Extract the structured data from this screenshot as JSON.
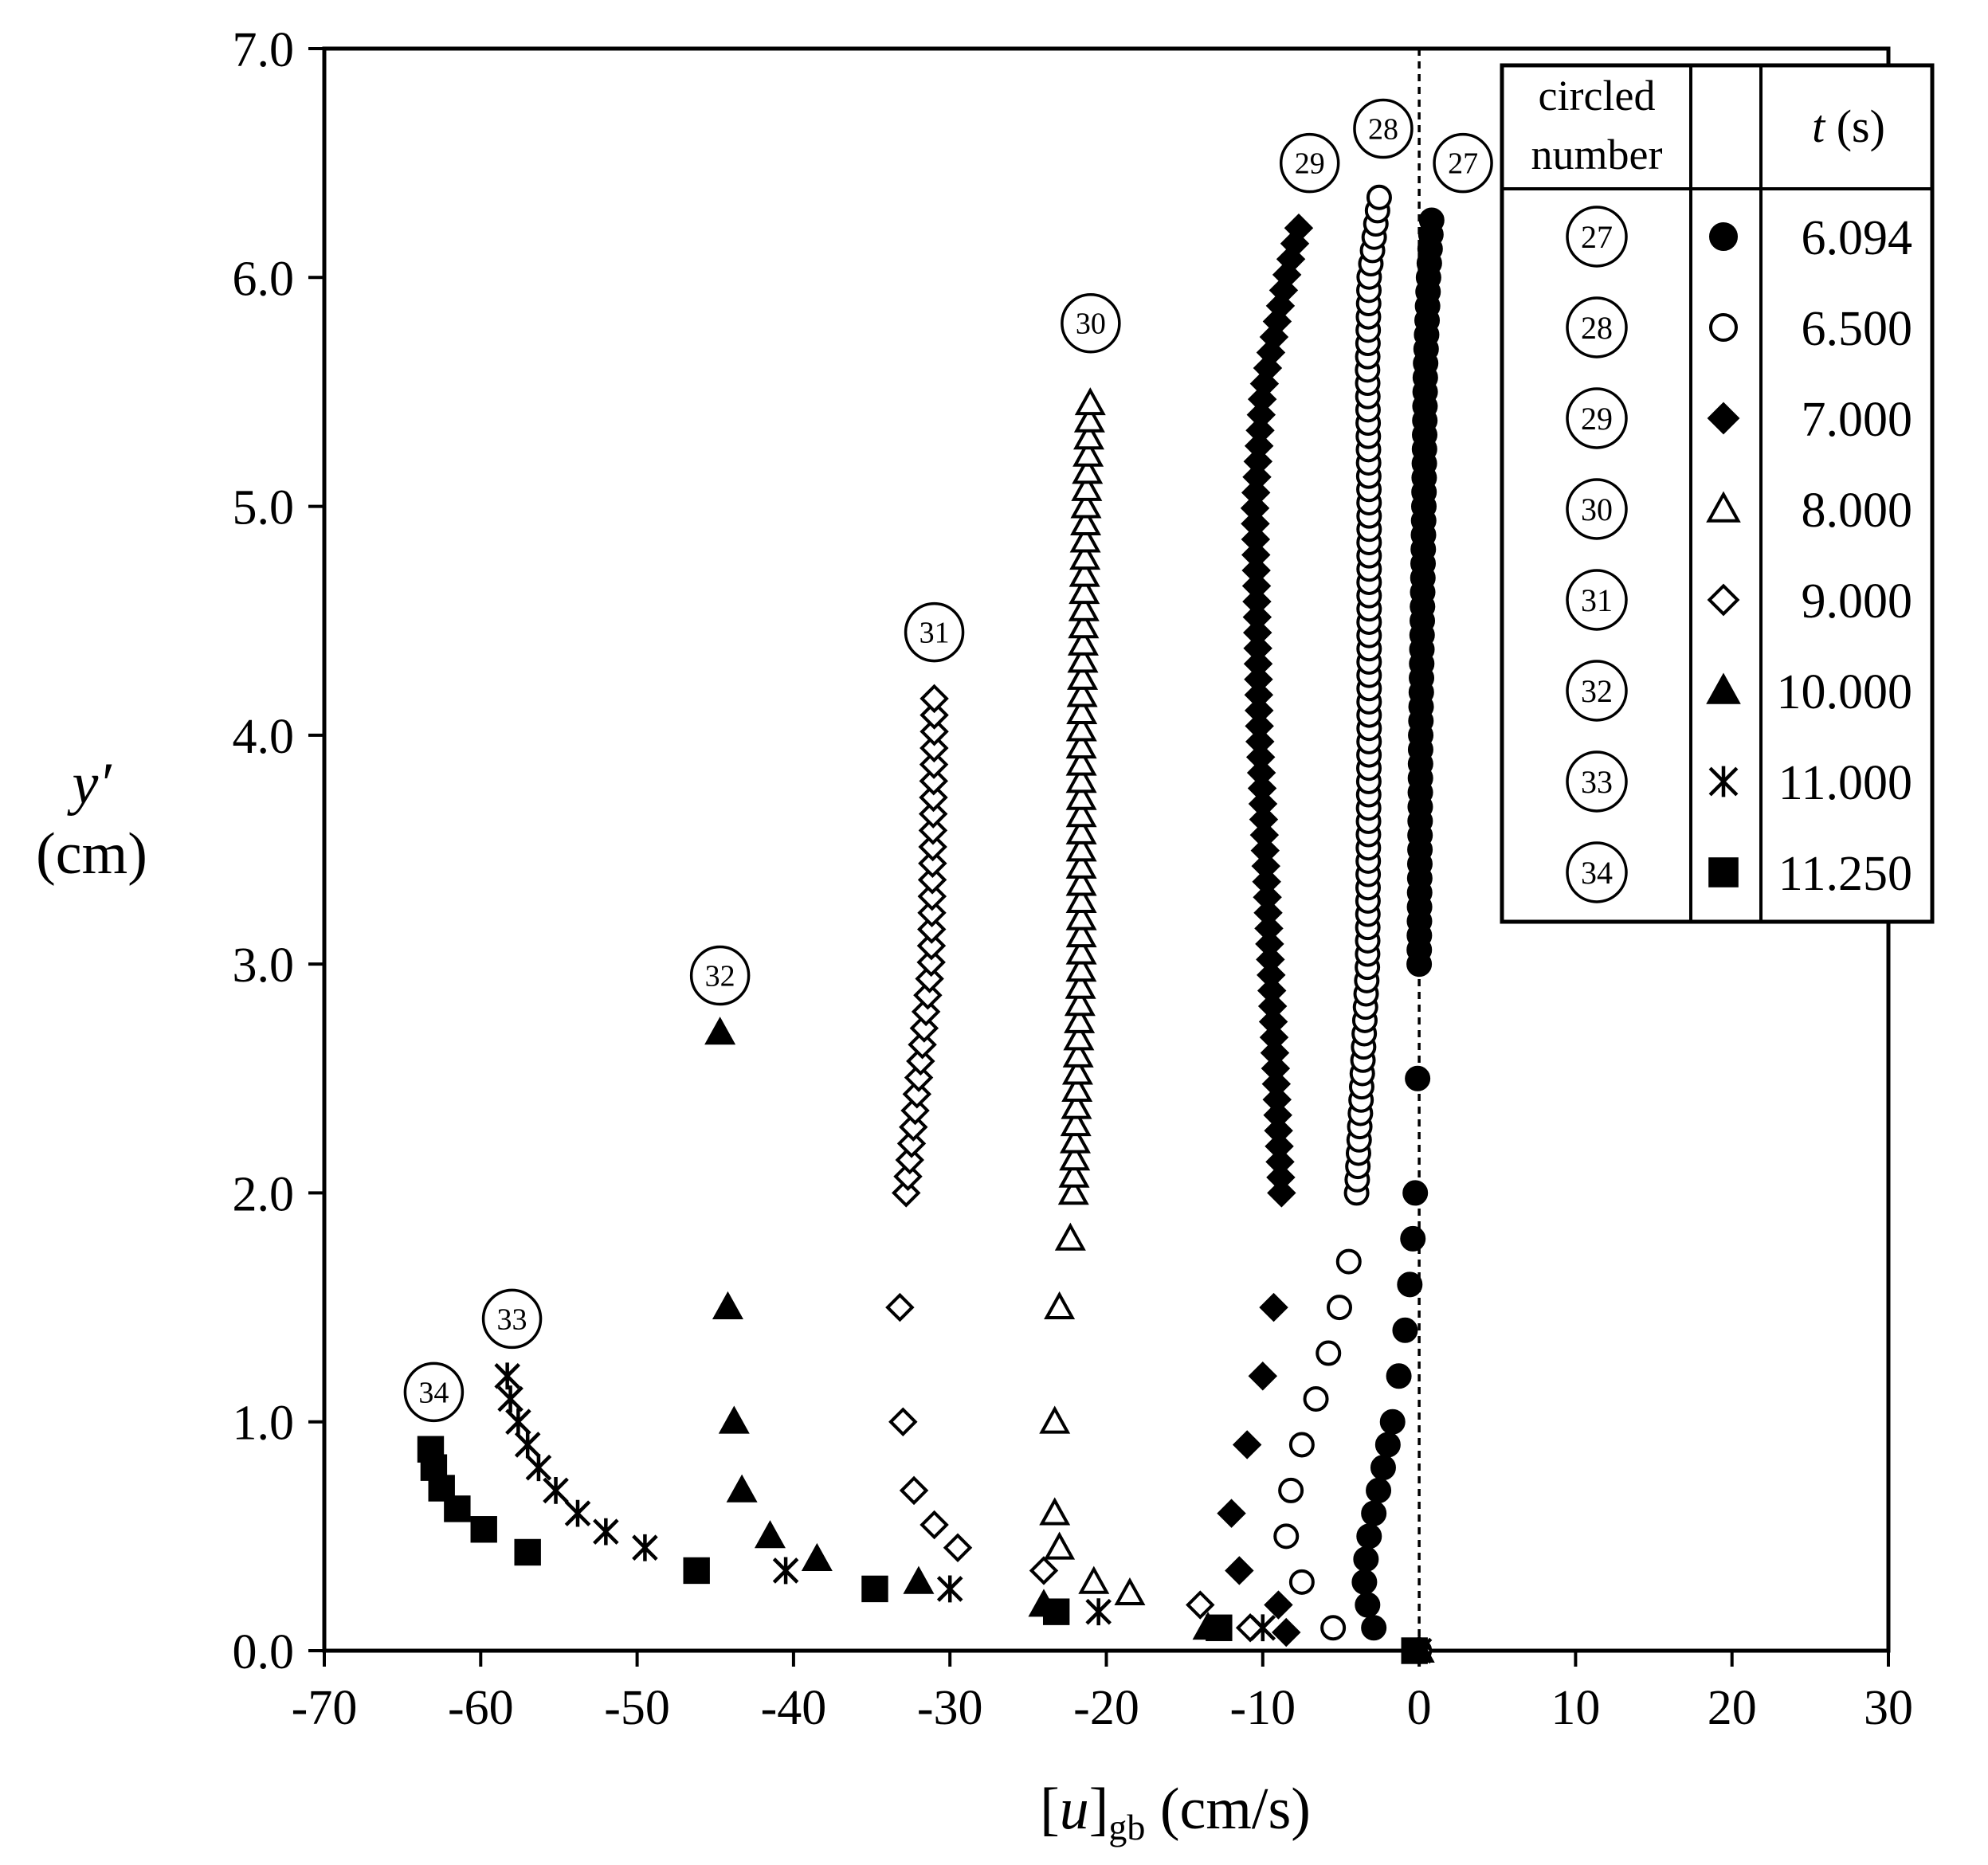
{
  "chart_data": {
    "type": "scatter",
    "xlabel": "[u]gb (cm/s)",
    "xlabel_parts": {
      "open": "[",
      "var": "u",
      "close": "]",
      "sub": "gb",
      "unit": " (cm/s)"
    },
    "ylabel": "y′ (cm)",
    "ylabel_parts": {
      "var": "y′",
      "unit": "(cm)"
    },
    "xlim": [
      -70,
      30
    ],
    "ylim": [
      0,
      7
    ],
    "x_ticks": [
      -70,
      -60,
      -50,
      -40,
      -30,
      -20,
      -10,
      0,
      10,
      20,
      30
    ],
    "x_tick_labels": [
      "-70",
      "-60",
      "-50",
      "-40",
      "-30",
      "-20",
      "-10",
      "0",
      "10",
      "20",
      "30"
    ],
    "y_ticks": [
      0,
      1,
      2,
      3,
      4,
      5,
      6,
      7
    ],
    "y_tick_labels": [
      "0.0",
      "1.0",
      "2.0",
      "3.0",
      "4.0",
      "5.0",
      "6.0",
      "7.0"
    ],
    "grid": false,
    "reference_line": {
      "x": 0,
      "style": "dotted"
    },
    "legend": {
      "placement": "top-right",
      "header_number": "circled number",
      "header_number_lines": [
        "circled",
        "number"
      ],
      "header_time": "t (s)",
      "header_time_parts": {
        "var": "t",
        "unit": " (s)"
      }
    },
    "series": [
      {
        "id": 27,
        "label": "27",
        "t": "6.094",
        "marker": "circle",
        "fill": "filled",
        "profile": {
          "y_top": 6.25,
          "step": 0.0625,
          "bottom": [
            [
              0,
              0
            ],
            [
              0.1,
              -2.9
            ],
            [
              0.2,
              -3.3
            ],
            [
              0.3,
              -3.5
            ],
            [
              0.4,
              -3.4
            ],
            [
              0.5,
              -3.2
            ],
            [
              0.6,
              -2.9
            ],
            [
              0.7,
              -2.6
            ],
            [
              0.8,
              -2.3
            ],
            [
              0.9,
              -2.0
            ],
            [
              1.0,
              -1.7
            ],
            [
              1.2,
              -1.3
            ],
            [
              1.4,
              -0.9
            ],
            [
              1.6,
              -0.6
            ],
            [
              1.8,
              -0.4
            ],
            [
              2.0,
              -0.25
            ],
            [
              2.5,
              -0.1
            ],
            [
              3.0,
              0.0
            ]
          ],
          "upper": [
            [
              3.0,
              0.0
            ],
            [
              4.0,
              0.1
            ],
            [
              5.0,
              0.3
            ],
            [
              5.6,
              0.4
            ],
            [
              6.0,
              0.6
            ],
            [
              6.25,
              0.8
            ]
          ]
        },
        "label_pos": [
          2.8,
          6.5
        ]
      },
      {
        "id": 28,
        "label": "28",
        "t": "6.500",
        "marker": "circle",
        "fill": "open",
        "profile": {
          "y_top": 6.38,
          "step": 0.058,
          "bottom": [
            [
              0,
              0
            ],
            [
              0.1,
              -5.5
            ],
            [
              0.3,
              -7.5
            ],
            [
              0.5,
              -8.5
            ],
            [
              0.7,
              -8.2
            ],
            [
              0.9,
              -7.5
            ],
            [
              1.1,
              -6.6
            ],
            [
              1.3,
              -5.8
            ],
            [
              1.5,
              -5.1
            ],
            [
              1.7,
              -4.5
            ],
            [
              2.0,
              -4.0
            ]
          ],
          "upper": [
            [
              2.0,
              -4.0
            ],
            [
              3.0,
              -3.3
            ],
            [
              4.0,
              -3.2
            ],
            [
              5.0,
              -3.2
            ],
            [
              5.6,
              -3.3
            ],
            [
              6.0,
              -3.2
            ],
            [
              6.38,
              -2.5
            ]
          ]
        },
        "label_pos": [
          -2.3,
          6.65
        ]
      },
      {
        "id": 29,
        "label": "29",
        "t": "7.000",
        "marker": "diamond",
        "fill": "filled",
        "profile": {
          "y_top": 6.27,
          "step": 0.068,
          "bottom": [
            [
              0,
              0
            ],
            [
              0.08,
              -8.5
            ],
            [
              0.2,
              -9.0
            ],
            [
              0.35,
              -11.5
            ],
            [
              0.6,
              -12.0
            ],
            [
              0.9,
              -11.0
            ],
            [
              1.2,
              -10.0
            ],
            [
              1.5,
              -9.3
            ],
            [
              2.0,
              -8.8
            ]
          ],
          "upper": [
            [
              2.0,
              -8.8
            ],
            [
              3.0,
              -9.5
            ],
            [
              4.0,
              -10.2
            ],
            [
              5.0,
              -10.5
            ],
            [
              5.5,
              -10.0
            ],
            [
              6.0,
              -8.5
            ],
            [
              6.27,
              -7.5
            ]
          ]
        },
        "label_pos": [
          -7.0,
          6.5
        ]
      },
      {
        "id": 30,
        "label": "30",
        "t": "8.000",
        "marker": "triangle",
        "fill": "open",
        "profile": {
          "y_top": 5.5,
          "step": 0.075,
          "bottom": [
            [
              0,
              0
            ],
            [
              0.25,
              -18.5
            ],
            [
              0.3,
              -20.8
            ],
            [
              0.45,
              -23.0
            ],
            [
              0.6,
              -23.3
            ],
            [
              1.0,
              -23.3
            ],
            [
              1.5,
              -23.0
            ],
            [
              1.8,
              -22.3
            ],
            [
              2.0,
              -22.1
            ]
          ],
          "upper": [
            [
              2.0,
              -22.1
            ],
            [
              3.0,
              -21.6
            ],
            [
              4.0,
              -21.6
            ],
            [
              5.0,
              -21.3
            ],
            [
              5.5,
              -21.0
            ]
          ]
        },
        "label_pos": [
          -21.0,
          5.8
        ]
      },
      {
        "id": 31,
        "label": "31",
        "t": "9.000",
        "marker": "diamond",
        "fill": "open",
        "profile": {
          "y_top": 4.2,
          "step": 0.072,
          "bottom": [
            [
              0,
              0
            ],
            [
              0.1,
              -10.8
            ],
            [
              0.2,
              -14.0
            ],
            [
              0.35,
              -24.0
            ],
            [
              0.45,
              -29.5
            ],
            [
              0.55,
              -31.0
            ],
            [
              0.7,
              -32.3
            ],
            [
              1.0,
              -33.0
            ],
            [
              1.5,
              -33.2
            ],
            [
              2.0,
              -32.8
            ]
          ],
          "upper": [
            [
              2.0,
              -32.8
            ],
            [
              3.0,
              -31.2
            ],
            [
              4.0,
              -31.0
            ],
            [
              4.2,
              -31.0
            ]
          ]
        },
        "label_pos": [
          -31.0,
          4.45
        ]
      },
      {
        "id": 32,
        "label": "32",
        "t": "10.000",
        "marker": "triangle",
        "fill": "filled",
        "profile": {
          "y_top": 2.7,
          "step": 0.068,
          "bottom": [
            [
              0,
              0
            ],
            [
              0.1,
              -13.5
            ],
            [
              0.2,
              -24.0
            ],
            [
              0.3,
              -32.0
            ],
            [
              0.4,
              -38.5
            ],
            [
              0.5,
              -41.5
            ],
            [
              0.7,
              -43.3
            ],
            [
              1.0,
              -43.8
            ],
            [
              1.5,
              -44.2
            ],
            [
              2.7,
              -44.7
            ]
          ],
          "upper": [
            [
              2.7,
              -44.7
            ]
          ]
        },
        "label_pos": [
          -44.7,
          2.95
        ]
      },
      {
        "id": 33,
        "label": "33",
        "t": "11.000",
        "marker": "asterisk",
        "fill": "filled",
        "profile": {
          "y_top": 1.2,
          "step": 0.09,
          "bottom": [
            [
              0,
              0
            ],
            [
              0.1,
              -10.0
            ],
            [
              0.17,
              -20.5
            ],
            [
              0.27,
              -30.0
            ],
            [
              0.35,
              -40.5
            ],
            [
              0.45,
              -49.5
            ],
            [
              0.52,
              -52.0
            ],
            [
              0.6,
              -53.8
            ],
            [
              0.7,
              -55.2
            ],
            [
              0.8,
              -56.3
            ],
            [
              0.9,
              -57.0
            ],
            [
              1.0,
              -57.6
            ],
            [
              1.1,
              -58.1
            ],
            [
              1.2,
              -58.3
            ]
          ],
          "upper": [
            [
              1.2,
              -58.3
            ]
          ]
        },
        "label_pos": [
          -58.0,
          1.45
        ]
      },
      {
        "id": 34,
        "label": "34",
        "t": "11.250",
        "marker": "square",
        "fill": "filled",
        "points": [
          [
            -0.3,
            0.0
          ],
          [
            -12.8,
            0.1
          ],
          [
            -23.2,
            0.17
          ],
          [
            -34.8,
            0.27
          ],
          [
            -46.2,
            0.35
          ],
          [
            -57.0,
            0.43
          ],
          [
            -59.8,
            0.53
          ],
          [
            -61.5,
            0.62
          ],
          [
            -62.5,
            0.71
          ],
          [
            -63.0,
            0.8
          ],
          [
            -63.2,
            0.88
          ]
        ],
        "label_pos": [
          -63.0,
          1.13
        ]
      }
    ]
  }
}
